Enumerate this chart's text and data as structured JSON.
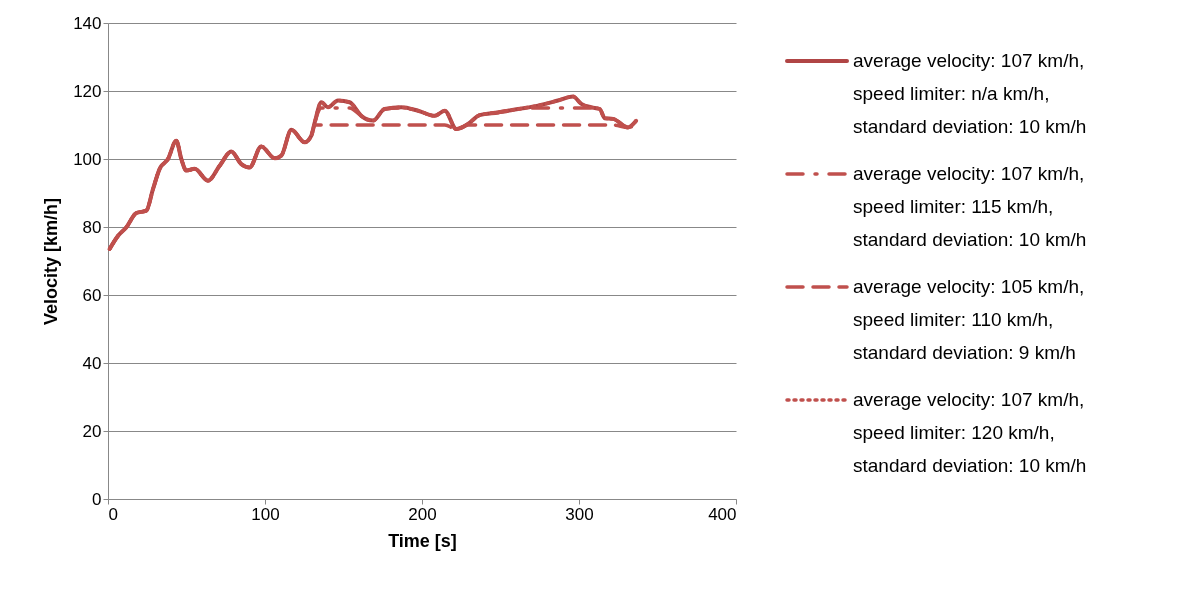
{
  "chart_data": {
    "type": "line",
    "xlabel": "Time [s]",
    "ylabel": "Velocity [km/h]",
    "xlim": [
      0,
      400
    ],
    "xticks": [
      0,
      100,
      200,
      300,
      400
    ],
    "ylim": [
      0,
      140
    ],
    "yticks": [
      0,
      20,
      40,
      60,
      80,
      100,
      120,
      140
    ],
    "grid": "y",
    "legend": "right",
    "marker": "none",
    "x": [
      1,
      6.4,
      11.7,
      18,
      24.4,
      28.7,
      32.9,
      38.2,
      43.5,
      46.7,
      49.9,
      55.2,
      63.7,
      71.1,
      78.5,
      84.9,
      90.2,
      97.6,
      106.2,
      110.4,
      116.8,
      125.3,
      129.5,
      131.7,
      135.9,
      140.1,
      146.5,
      153.9,
      161.3,
      168.8,
      176.2,
      186.8,
      197.5,
      208.1,
      214.5,
      221.9,
      229.3,
      236.7,
      248.4,
      261.1,
      273.9,
      286.6,
      296.2,
      301.5,
      307.9,
      313.2,
      316.4,
      321.7,
      331.2,
      336.5
    ],
    "series": [
      {
        "name": "average velocity: 107 km/h, speed limiter: n/a km/h, standard deviation: 10 km/h",
        "color": "#b04545",
        "line_style": "solid",
        "values": [
          73.5,
          77.4,
          79.9,
          84.1,
          84.8,
          91.2,
          97.1,
          100,
          105.4,
          100,
          96.6,
          97.1,
          93.6,
          98,
          102.2,
          98.5,
          97.5,
          103.7,
          100.2,
          101,
          108.6,
          104.9,
          106.9,
          110.8,
          116.7,
          115.2,
          117.2,
          116.7,
          112.7,
          111.3,
          114.7,
          115.2,
          114.2,
          112.7,
          114.2,
          108.8,
          110.3,
          112.9,
          113.7,
          114.7,
          115.7,
          117.2,
          118.4,
          116.2,
          115.2,
          114.7,
          112,
          111.8,
          109.3,
          111.3
        ]
      },
      {
        "name": "average velocity: 107 km/h, speed limiter: 115 km/h, standard deviation: 10 km/h",
        "color": "#c0504d",
        "line_style": "dashdot",
        "values": [
          73.5,
          77.4,
          79.9,
          84.1,
          84.8,
          91.2,
          97.1,
          100,
          105.4,
          100,
          96.6,
          97.1,
          93.6,
          98,
          102.2,
          98.5,
          97.5,
          103.7,
          100.2,
          101,
          108.6,
          104.9,
          106.9,
          110.8,
          115,
          115,
          115,
          115,
          112.7,
          111.3,
          114.7,
          115,
          114.2,
          112.7,
          114.2,
          108.8,
          110.3,
          112.9,
          113.7,
          114.7,
          115,
          115,
          115,
          115,
          115,
          114.7,
          112,
          111.8,
          109.3,
          111.3
        ]
      },
      {
        "name": "average velocity: 105 km/h, speed limiter: 110 km/h, standard deviation: 9 km/h",
        "color": "#c0504d",
        "line_style": "dashed",
        "values": [
          73.5,
          77.4,
          79.9,
          84.1,
          84.8,
          91.2,
          97.1,
          100,
          105.4,
          100,
          96.6,
          97.1,
          93.6,
          98,
          102.2,
          98.5,
          97.5,
          103.7,
          100.2,
          101,
          108.6,
          104.9,
          106.9,
          110,
          110,
          110,
          110,
          110,
          110,
          110,
          110,
          110,
          110,
          110,
          110,
          108.8,
          110,
          110,
          110,
          110,
          110,
          110,
          110,
          110,
          110,
          110,
          110,
          110,
          109.3,
          110
        ]
      },
      {
        "name": "average velocity: 107 km/h, speed limiter: 120 km/h, standard deviation: 10 km/h",
        "color": "#c0504d",
        "line_style": "dotted",
        "values": [
          73.5,
          77.4,
          79.9,
          84.1,
          84.8,
          91.2,
          97.1,
          100,
          105.4,
          100,
          96.6,
          97.1,
          93.6,
          98,
          102.2,
          98.5,
          97.5,
          103.7,
          100.2,
          101,
          108.6,
          104.9,
          106.9,
          110.8,
          116.7,
          115.2,
          117.2,
          116.7,
          112.7,
          111.3,
          114.7,
          115.2,
          114.2,
          112.7,
          114.2,
          108.8,
          110.3,
          112.9,
          113.7,
          114.7,
          115.7,
          117.2,
          118.4,
          116.2,
          115.2,
          114.7,
          112,
          111.8,
          109.3,
          111.3
        ]
      }
    ]
  }
}
